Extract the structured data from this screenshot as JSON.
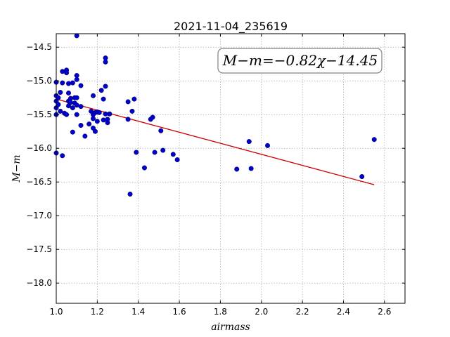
{
  "chart_data": {
    "type": "scatter",
    "title": "2021-11-04_235619",
    "xlabel": "airmass",
    "ylabel": "M−m",
    "xlim": [
      1.0,
      2.7
    ],
    "ylim": [
      -18.3,
      -14.3
    ],
    "y_inverted": true,
    "grid": true,
    "xticks": [
      "1.0",
      "1.2",
      "1.4",
      "1.6",
      "1.8",
      "2.0",
      "2.2",
      "2.4",
      "2.6"
    ],
    "yticks": [
      "−14.5",
      "−15.0",
      "−15.5",
      "−16.0",
      "−16.5",
      "−17.0",
      "−17.5",
      "−18.0"
    ],
    "annotation": "M−m=−0.82χ−14.45",
    "colors": {
      "points": "#0000cc",
      "fit": "#cc0000"
    },
    "fit": {
      "slope": -0.82,
      "intercept": -14.45,
      "x_range": [
        1.0,
        2.55
      ]
    },
    "points": [
      {
        "x": 1.0,
        "y": -15.02
      },
      {
        "x": 1.0,
        "y": -15.22
      },
      {
        "x": 1.0,
        "y": -15.3
      },
      {
        "x": 1.0,
        "y": -15.4
      },
      {
        "x": 1.0,
        "y": -15.5
      },
      {
        "x": 1.0,
        "y": -16.07
      },
      {
        "x": 1.01,
        "y": -15.25
      },
      {
        "x": 1.01,
        "y": -15.35
      },
      {
        "x": 1.02,
        "y": -15.17
      },
      {
        "x": 1.02,
        "y": -15.45
      },
      {
        "x": 1.03,
        "y": -14.86
      },
      {
        "x": 1.03,
        "y": -15.03
      },
      {
        "x": 1.03,
        "y": -16.11
      },
      {
        "x": 1.04,
        "y": -15.48
      },
      {
        "x": 1.05,
        "y": -15.5
      },
      {
        "x": 1.05,
        "y": -14.84
      },
      {
        "x": 1.05,
        "y": -14.88
      },
      {
        "x": 1.06,
        "y": -15.04
      },
      {
        "x": 1.06,
        "y": -15.18
      },
      {
        "x": 1.06,
        "y": -15.3
      },
      {
        "x": 1.06,
        "y": -15.37
      },
      {
        "x": 1.07,
        "y": -15.26
      },
      {
        "x": 1.07,
        "y": -15.32
      },
      {
        "x": 1.08,
        "y": -15.03
      },
      {
        "x": 1.08,
        "y": -15.4
      },
      {
        "x": 1.08,
        "y": -15.76
      },
      {
        "x": 1.09,
        "y": -15.33
      },
      {
        "x": 1.09,
        "y": -15.25
      },
      {
        "x": 1.1,
        "y": -14.92
      },
      {
        "x": 1.1,
        "y": -15.36
      },
      {
        "x": 1.1,
        "y": -15.5
      },
      {
        "x": 1.1,
        "y": -15.25
      },
      {
        "x": 1.1,
        "y": -14.98
      },
      {
        "x": 1.1,
        "y": -14.33
      },
      {
        "x": 1.12,
        "y": -15.07
      },
      {
        "x": 1.12,
        "y": -15.38
      },
      {
        "x": 1.12,
        "y": -15.66
      },
      {
        "x": 1.14,
        "y": -15.82
      },
      {
        "x": 1.16,
        "y": -15.64
      },
      {
        "x": 1.17,
        "y": -15.45
      },
      {
        "x": 1.18,
        "y": -15.22
      },
      {
        "x": 1.18,
        "y": -15.5
      },
      {
        "x": 1.18,
        "y": -15.56
      },
      {
        "x": 1.18,
        "y": -15.7
      },
      {
        "x": 1.19,
        "y": -15.47
      },
      {
        "x": 1.19,
        "y": -15.75
      },
      {
        "x": 1.2,
        "y": -15.6
      },
      {
        "x": 1.2,
        "y": -15.46
      },
      {
        "x": 1.21,
        "y": -15.47
      },
      {
        "x": 1.22,
        "y": -15.14
      },
      {
        "x": 1.23,
        "y": -15.58
      },
      {
        "x": 1.23,
        "y": -15.27
      },
      {
        "x": 1.24,
        "y": -14.66
      },
      {
        "x": 1.24,
        "y": -14.72
      },
      {
        "x": 1.24,
        "y": -15.08
      },
      {
        "x": 1.24,
        "y": -15.49
      },
      {
        "x": 1.25,
        "y": -15.62
      },
      {
        "x": 1.25,
        "y": -15.57
      },
      {
        "x": 1.26,
        "y": -15.49
      },
      {
        "x": 1.35,
        "y": -15.31
      },
      {
        "x": 1.35,
        "y": -15.57
      },
      {
        "x": 1.36,
        "y": -16.68
      },
      {
        "x": 1.37,
        "y": -15.45
      },
      {
        "x": 1.38,
        "y": -15.27
      },
      {
        "x": 1.39,
        "y": -16.06
      },
      {
        "x": 1.43,
        "y": -16.29
      },
      {
        "x": 1.46,
        "y": -15.57
      },
      {
        "x": 1.47,
        "y": -15.54
      },
      {
        "x": 1.48,
        "y": -16.06
      },
      {
        "x": 1.51,
        "y": -15.74
      },
      {
        "x": 1.52,
        "y": -16.03
      },
      {
        "x": 1.57,
        "y": -16.09
      },
      {
        "x": 1.59,
        "y": -16.17
      },
      {
        "x": 1.88,
        "y": -16.31
      },
      {
        "x": 1.94,
        "y": -15.9
      },
      {
        "x": 1.95,
        "y": -16.3
      },
      {
        "x": 2.03,
        "y": -15.96
      },
      {
        "x": 2.49,
        "y": -16.42
      },
      {
        "x": 2.55,
        "y": -15.87
      }
    ]
  }
}
